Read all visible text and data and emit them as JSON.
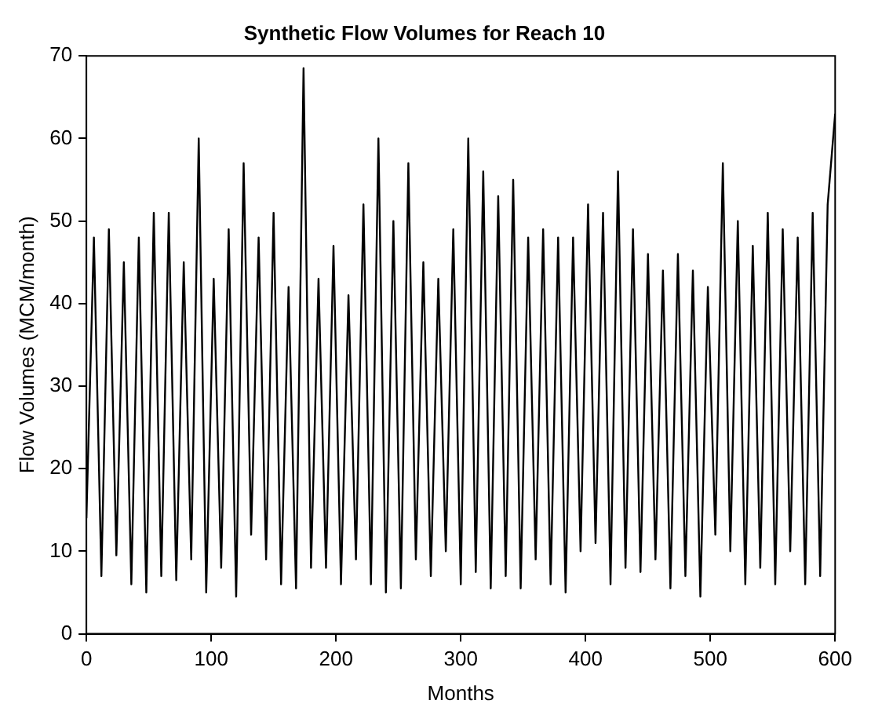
{
  "chart_data": {
    "type": "line",
    "title": "Synthetic Flow Volumes for Reach 10",
    "xlabel": "Months",
    "ylabel": "Flow Volumes (MCM/month)",
    "x": [
      0,
      6,
      12,
      18,
      24,
      30,
      36,
      42,
      48,
      54,
      60,
      66,
      72,
      78,
      84,
      90,
      96,
      102,
      108,
      114,
      120,
      126,
      132,
      138,
      144,
      150,
      156,
      162,
      168,
      174,
      180,
      186,
      192,
      198,
      204,
      210,
      216,
      222,
      228,
      234,
      240,
      246,
      252,
      258,
      264,
      270,
      276,
      282,
      288,
      294,
      300,
      306,
      312,
      318,
      324,
      330,
      336,
      342,
      348,
      354,
      360,
      366,
      372,
      378,
      384,
      390,
      396,
      402,
      408,
      414,
      420,
      426,
      432,
      438,
      444,
      450,
      456,
      462,
      468,
      474,
      480,
      486,
      492,
      498,
      504,
      510,
      516,
      522,
      528,
      534,
      540,
      546,
      552,
      558,
      564,
      570,
      576,
      582,
      588,
      594,
      600
    ],
    "series": [
      {
        "color": "#000000",
        "values": [
          14,
          48,
          7,
          49,
          9.5,
          45,
          6,
          48,
          5,
          51,
          7,
          51,
          6.5,
          45,
          9,
          60,
          5,
          43,
          8,
          49,
          4.5,
          57,
          12,
          48,
          9,
          51,
          6,
          42,
          5.5,
          68.5,
          8,
          43,
          8,
          47,
          6,
          41,
          9,
          52,
          6,
          60,
          5,
          50,
          5.5,
          57,
          9,
          45,
          7,
          43,
          10,
          49,
          6,
          60,
          7.5,
          56,
          5.5,
          53,
          7,
          55,
          5.5,
          48,
          9,
          49,
          6,
          48,
          5,
          48,
          10,
          52,
          11,
          51,
          6,
          56,
          8,
          49,
          7.5,
          46,
          9,
          44,
          5.5,
          46,
          7,
          44,
          4.5,
          42,
          12,
          57,
          10,
          50,
          6,
          47,
          8,
          51,
          6,
          49,
          10,
          48,
          6,
          51,
          7,
          52,
          63
        ]
      }
    ],
    "xlim": [
      0,
      600
    ],
    "xticks": [
      0,
      100,
      200,
      300,
      400,
      500,
      600
    ],
    "ylim": [
      0,
      70
    ],
    "yticks": [
      0,
      10,
      20,
      30,
      40,
      50,
      60,
      70
    ],
    "grid": false,
    "legend": false,
    "marker": "none",
    "line_style": "solid"
  }
}
